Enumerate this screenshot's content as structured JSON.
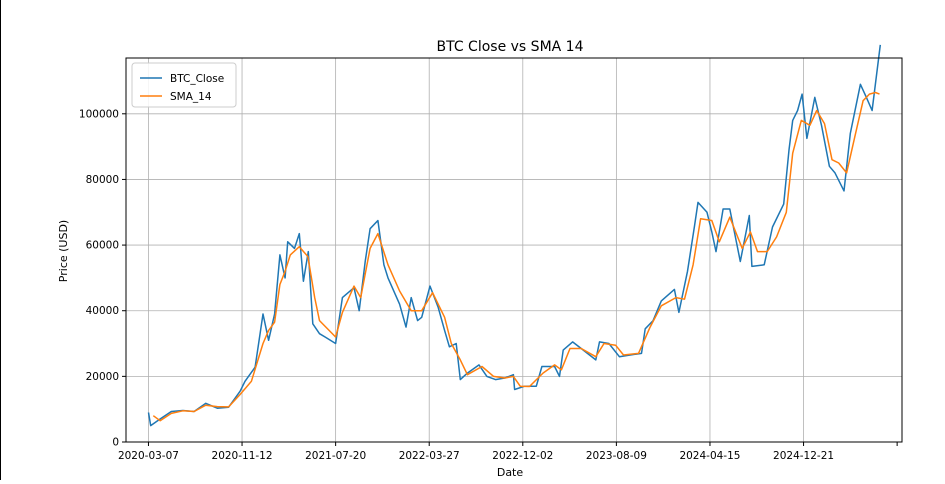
{
  "colors": {
    "btc_close": "#1f77b4",
    "sma_14": "#ff7f0e",
    "grid": "#b0b0b0",
    "axis": "#000000",
    "background": "#ffffff"
  },
  "chart_data": {
    "type": "line",
    "title": "BTC Close vs SMA 14",
    "xlabel": "Date",
    "ylabel": "Price (USD)",
    "xlim": [
      "2020-01-07",
      "2025-09-10"
    ],
    "ylim": [
      0,
      117000
    ],
    "grid": true,
    "legend_position": "top-left",
    "x_ticks": [
      "2020-03-07",
      "2020-11-12",
      "2021-07-20",
      "2022-03-27",
      "2022-12-02",
      "2023-08-09",
      "2024-04-15",
      "2024-12-21"
    ],
    "y_ticks": [
      0,
      20000,
      40000,
      60000,
      80000,
      100000
    ],
    "series": [
      {
        "name": "BTC_Close",
        "points": [
          [
            "2020-03-07",
            9000
          ],
          [
            "2020-03-13",
            5000
          ],
          [
            "2020-04-07",
            7000
          ],
          [
            "2020-05-07",
            9300
          ],
          [
            "2020-06-07",
            9600
          ],
          [
            "2020-07-07",
            9300
          ],
          [
            "2020-08-07",
            11800
          ],
          [
            "2020-09-07",
            10300
          ],
          [
            "2020-10-07",
            10600
          ],
          [
            "2020-11-07",
            15500
          ],
          [
            "2020-11-20",
            18500
          ],
          [
            "2020-12-17",
            22800
          ],
          [
            "2021-01-07",
            39000
          ],
          [
            "2021-01-22",
            31000
          ],
          [
            "2021-02-07",
            39000
          ],
          [
            "2021-02-21",
            57000
          ],
          [
            "2021-03-07",
            50000
          ],
          [
            "2021-03-14",
            61000
          ],
          [
            "2021-04-01",
            59000
          ],
          [
            "2021-04-14",
            63500
          ],
          [
            "2021-04-25",
            49000
          ],
          [
            "2021-05-08",
            58000
          ],
          [
            "2021-05-20",
            36000
          ],
          [
            "2021-06-07",
            33000
          ],
          [
            "2021-06-22",
            32000
          ],
          [
            "2021-07-20",
            30000
          ],
          [
            "2021-08-07",
            44000
          ],
          [
            "2021-09-07",
            47000
          ],
          [
            "2021-09-21",
            40000
          ],
          [
            "2021-10-07",
            55000
          ],
          [
            "2021-10-20",
            65000
          ],
          [
            "2021-11-10",
            67500
          ],
          [
            "2021-11-26",
            54000
          ],
          [
            "2021-12-07",
            50000
          ],
          [
            "2022-01-07",
            42000
          ],
          [
            "2022-01-24",
            35000
          ],
          [
            "2022-02-07",
            44000
          ],
          [
            "2022-02-24",
            37000
          ],
          [
            "2022-03-07",
            38000
          ],
          [
            "2022-03-29",
            47500
          ],
          [
            "2022-04-20",
            41000
          ],
          [
            "2022-05-07",
            34000
          ],
          [
            "2022-05-20",
            29000
          ],
          [
            "2022-06-07",
            30000
          ],
          [
            "2022-06-18",
            19000
          ],
          [
            "2022-07-07",
            21000
          ],
          [
            "2022-08-07",
            23500
          ],
          [
            "2022-08-28",
            20000
          ],
          [
            "2022-09-20",
            19000
          ],
          [
            "2022-10-15",
            19500
          ],
          [
            "2022-11-07",
            20500
          ],
          [
            "2022-11-10",
            16000
          ],
          [
            "2022-12-07",
            17000
          ],
          [
            "2023-01-07",
            17000
          ],
          [
            "2023-01-22",
            23000
          ],
          [
            "2023-02-25",
            23000
          ],
          [
            "2023-03-10",
            20000
          ],
          [
            "2023-03-20",
            28000
          ],
          [
            "2023-04-14",
            30500
          ],
          [
            "2023-05-07",
            28500
          ],
          [
            "2023-06-15",
            25000
          ],
          [
            "2023-06-25",
            30500
          ],
          [
            "2023-07-20",
            30000
          ],
          [
            "2023-08-17",
            26000
          ],
          [
            "2023-09-15",
            26500
          ],
          [
            "2023-10-15",
            27000
          ],
          [
            "2023-10-25",
            34500
          ],
          [
            "2023-11-15",
            37000
          ],
          [
            "2023-12-07",
            43000
          ],
          [
            "2024-01-11",
            46500
          ],
          [
            "2024-01-23",
            39500
          ],
          [
            "2024-02-15",
            52000
          ],
          [
            "2024-03-05",
            66000
          ],
          [
            "2024-03-14",
            73000
          ],
          [
            "2024-04-07",
            70000
          ],
          [
            "2024-04-20",
            64000
          ],
          [
            "2024-05-01",
            58000
          ],
          [
            "2024-05-20",
            71000
          ],
          [
            "2024-06-07",
            71000
          ],
          [
            "2024-07-05",
            55000
          ],
          [
            "2024-07-29",
            69000
          ],
          [
            "2024-08-05",
            53500
          ],
          [
            "2024-09-07",
            54000
          ],
          [
            "2024-09-29",
            65500
          ],
          [
            "2024-10-29",
            72500
          ],
          [
            "2024-11-12",
            89000
          ],
          [
            "2024-11-22",
            98000
          ],
          [
            "2024-12-05",
            101000
          ],
          [
            "2024-12-17",
            106000
          ],
          [
            "2024-12-30",
            92500
          ],
          [
            "2025-01-20",
            105000
          ],
          [
            "2025-02-07",
            96500
          ],
          [
            "2025-02-28",
            84000
          ],
          [
            "2025-03-15",
            82000
          ],
          [
            "2025-04-08",
            76500
          ],
          [
            "2025-04-25",
            94000
          ],
          [
            "2025-05-22",
            109000
          ],
          [
            "2025-06-07",
            105000
          ],
          [
            "2025-06-22",
            101000
          ],
          [
            "2025-07-14",
            121000
          ]
        ]
      },
      {
        "name": "SMA_14",
        "points": [
          [
            "2020-03-20",
            8000
          ],
          [
            "2020-04-07",
            6500
          ],
          [
            "2020-05-07",
            8700
          ],
          [
            "2020-06-07",
            9500
          ],
          [
            "2020-07-07",
            9300
          ],
          [
            "2020-08-07",
            11200
          ],
          [
            "2020-09-07",
            10800
          ],
          [
            "2020-10-07",
            10700
          ],
          [
            "2020-11-07",
            14500
          ],
          [
            "2020-12-07",
            18500
          ],
          [
            "2021-01-07",
            30000
          ],
          [
            "2021-01-22",
            34000
          ],
          [
            "2021-02-07",
            36500
          ],
          [
            "2021-02-21",
            48000
          ],
          [
            "2021-03-07",
            52000
          ],
          [
            "2021-03-21",
            57000
          ],
          [
            "2021-04-14",
            59500
          ],
          [
            "2021-05-07",
            56500
          ],
          [
            "2021-05-25",
            44000
          ],
          [
            "2021-06-07",
            37000
          ],
          [
            "2021-07-20",
            32000
          ],
          [
            "2021-08-07",
            39500
          ],
          [
            "2021-09-07",
            47500
          ],
          [
            "2021-09-25",
            44000
          ],
          [
            "2021-10-20",
            59000
          ],
          [
            "2021-11-10",
            63500
          ],
          [
            "2021-12-07",
            54000
          ],
          [
            "2022-01-07",
            46000
          ],
          [
            "2022-02-07",
            40000
          ],
          [
            "2022-03-07",
            40000
          ],
          [
            "2022-04-05",
            45500
          ],
          [
            "2022-05-07",
            38000
          ],
          [
            "2022-05-25",
            30000
          ],
          [
            "2022-06-18",
            25000
          ],
          [
            "2022-07-07",
            20500
          ],
          [
            "2022-08-15",
            23000
          ],
          [
            "2022-09-15",
            20000
          ],
          [
            "2022-10-15",
            19500
          ],
          [
            "2022-11-07",
            20000
          ],
          [
            "2022-11-25",
            17000
          ],
          [
            "2022-12-20",
            16900
          ],
          [
            "2023-01-25",
            21000
          ],
          [
            "2023-02-25",
            23500
          ],
          [
            "2023-03-15",
            22000
          ],
          [
            "2023-04-07",
            28500
          ],
          [
            "2023-05-07",
            28500
          ],
          [
            "2023-06-15",
            26000
          ],
          [
            "2023-07-07",
            30000
          ],
          [
            "2023-08-07",
            29500
          ],
          [
            "2023-08-28",
            26500
          ],
          [
            "2023-10-07",
            27000
          ],
          [
            "2023-11-07",
            35000
          ],
          [
            "2023-12-07",
            41500
          ],
          [
            "2024-01-15",
            44000
          ],
          [
            "2024-02-07",
            43500
          ],
          [
            "2024-03-01",
            54000
          ],
          [
            "2024-03-21",
            68000
          ],
          [
            "2024-04-20",
            67500
          ],
          [
            "2024-05-10",
            61000
          ],
          [
            "2024-06-07",
            68500
          ],
          [
            "2024-07-10",
            59000
          ],
          [
            "2024-08-01",
            64000
          ],
          [
            "2024-08-20",
            58000
          ],
          [
            "2024-09-15",
            58000
          ],
          [
            "2024-10-10",
            62500
          ],
          [
            "2024-11-05",
            70000
          ],
          [
            "2024-11-22",
            88000
          ],
          [
            "2024-12-15",
            98000
          ],
          [
            "2025-01-07",
            96500
          ],
          [
            "2025-01-25",
            101000
          ],
          [
            "2025-02-15",
            97000
          ],
          [
            "2025-03-07",
            86000
          ],
          [
            "2025-03-25",
            85000
          ],
          [
            "2025-04-15",
            82000
          ],
          [
            "2025-05-07",
            93000
          ],
          [
            "2025-05-29",
            104000
          ],
          [
            "2025-06-15",
            106000
          ],
          [
            "2025-07-01",
            106500
          ],
          [
            "2025-07-12",
            106000
          ]
        ]
      }
    ]
  }
}
